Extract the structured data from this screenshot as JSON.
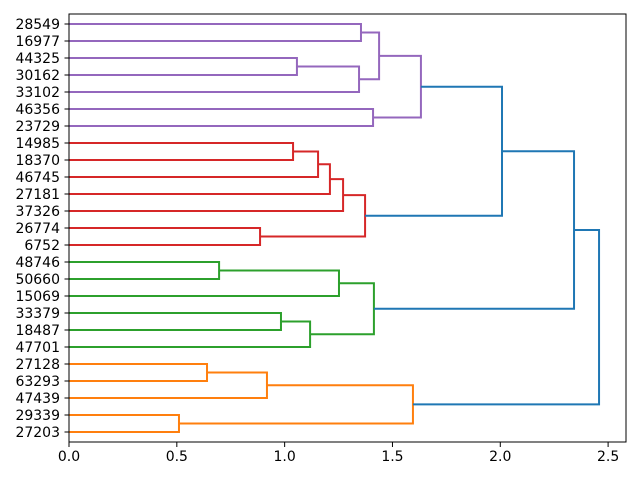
{
  "chart_data": {
    "type": "dendrogram",
    "orientation": "leaves-left-root-right",
    "title": "",
    "xlabel": "",
    "ylabel": "",
    "grid": false,
    "xlim": [
      0,
      2.583
    ],
    "xticks": [
      0.0,
      0.5,
      1.0,
      1.5,
      2.0,
      2.5
    ],
    "xtick_labels": [
      "0.0",
      "0.5",
      "1.0",
      "1.5",
      "2.0",
      "2.5"
    ],
    "leaves": [
      "28549",
      "16977",
      "44325",
      "30162",
      "33102",
      "46356",
      "23729",
      "14985",
      "18370",
      "46745",
      "27181",
      "37326",
      "26774",
      "6752",
      "48746",
      "50660",
      "15069",
      "33379",
      "18487",
      "47701",
      "27128",
      "63293",
      "47439",
      "29339",
      "27203"
    ],
    "colors": {
      "purple": "#9467bd",
      "red": "#d62728",
      "green": "#2ca02c",
      "orange": "#ff7f0e",
      "blue": "#1f77b4"
    },
    "links": [
      {
        "id": "P1",
        "children": [
          "28549",
          "16977"
        ],
        "height": 1.354,
        "color": "purple"
      },
      {
        "id": "P2",
        "children": [
          "44325",
          "30162"
        ],
        "height": 1.057,
        "color": "purple"
      },
      {
        "id": "P3",
        "children": [
          "P2",
          "33102"
        ],
        "height": 1.345,
        "color": "purple"
      },
      {
        "id": "P4",
        "children": [
          "P1",
          "P3"
        ],
        "height": 1.438,
        "color": "purple"
      },
      {
        "id": "P5",
        "children": [
          "46356",
          "23729"
        ],
        "height": 1.41,
        "color": "purple"
      },
      {
        "id": "P6",
        "children": [
          "P4",
          "P5"
        ],
        "height": 1.632,
        "color": "purple"
      },
      {
        "id": "R1",
        "children": [
          "14985",
          "18370"
        ],
        "height": 1.039,
        "color": "red"
      },
      {
        "id": "R2",
        "children": [
          "R1",
          "46745"
        ],
        "height": 1.155,
        "color": "red"
      },
      {
        "id": "R3",
        "children": [
          "R2",
          "27181"
        ],
        "height": 1.21,
        "color": "red"
      },
      {
        "id": "R4",
        "children": [
          "R3",
          "37326"
        ],
        "height": 1.271,
        "color": "red"
      },
      {
        "id": "R5",
        "children": [
          "26774",
          "6752"
        ],
        "height": 0.886,
        "color": "red"
      },
      {
        "id": "R6",
        "children": [
          "R4",
          "R5"
        ],
        "height": 1.373,
        "color": "red"
      },
      {
        "id": "G1",
        "children": [
          "48746",
          "50660"
        ],
        "height": 0.696,
        "color": "green"
      },
      {
        "id": "G2",
        "children": [
          "33379",
          "18487"
        ],
        "height": 0.983,
        "color": "green"
      },
      {
        "id": "G3",
        "children": [
          "G2",
          "47701"
        ],
        "height": 1.118,
        "color": "green"
      },
      {
        "id": "G4",
        "children": [
          "G1",
          "15069"
        ],
        "height": 1.252,
        "color": "green"
      },
      {
        "id": "G5",
        "children": [
          "G4",
          "G3"
        ],
        "height": 1.414,
        "color": "green"
      },
      {
        "id": "O1",
        "children": [
          "27128",
          "63293"
        ],
        "height": 0.64,
        "color": "orange"
      },
      {
        "id": "O2",
        "children": [
          "O1",
          "47439"
        ],
        "height": 0.918,
        "color": "orange"
      },
      {
        "id": "O3",
        "children": [
          "29339",
          "27203"
        ],
        "height": 0.51,
        "color": "orange"
      },
      {
        "id": "O4",
        "children": [
          "O2",
          "O3"
        ],
        "height": 1.595,
        "color": "orange"
      },
      {
        "id": "B1",
        "children": [
          "P6",
          "R6"
        ],
        "height": 2.008,
        "color": "blue"
      },
      {
        "id": "B2",
        "children": [
          "B1",
          "G5"
        ],
        "height": 2.342,
        "color": "blue"
      },
      {
        "id": "B3",
        "children": [
          "B2",
          "O4"
        ],
        "height": 2.458,
        "color": "blue"
      }
    ]
  }
}
